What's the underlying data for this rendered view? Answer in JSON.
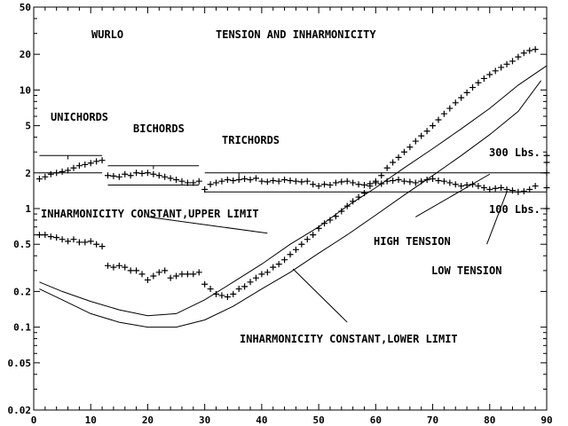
{
  "chart_data": {
    "type": "scatter",
    "y_scale": "log",
    "xlim": [
      0,
      90
    ],
    "ylim": [
      0.02,
      50
    ],
    "x_ticks": [
      0,
      10,
      20,
      30,
      40,
      50,
      60,
      70,
      80,
      90
    ],
    "x_tick_labels": [
      "0",
      "10",
      "20",
      "30",
      "40",
      "50",
      "60",
      "70",
      "80",
      "90"
    ],
    "y_ticks": [
      0.02,
      0.05,
      0.1,
      0.2,
      0.5,
      1,
      2,
      5,
      10,
      20,
      50
    ],
    "y_tick_labels": [
      "0.02",
      "0.05",
      "0.1",
      "0.2",
      "0.5",
      "1",
      "2",
      "5",
      "10",
      "20",
      "50"
    ],
    "annotations": {
      "wurlo": "WURLO",
      "title": "TENSION AND INHARMONICITY",
      "unichords": "UNICHORDS",
      "bichords": "BICHORDS",
      "trichords": "TRICHORDS",
      "lbs300": "300 Lbs.",
      "lbs100": "100 Lbs.",
      "inh_upper": "INHARMONICITY CONSTANT,UPPER LIMIT",
      "inh_lower": "INHARMONICITY CONSTANT,LOWER LIMIT",
      "high_tension": "HIGH TENSION",
      "low_tension": "LOW TENSION"
    },
    "series": [
      {
        "marker": "+",
        "x": [
          1,
          2,
          3,
          4,
          5,
          6,
          7,
          8,
          9,
          10,
          11,
          12,
          13,
          14,
          15,
          16,
          17,
          18,
          19,
          20,
          21,
          22,
          23,
          24,
          25,
          26,
          27,
          28,
          29,
          30,
          31,
          32,
          33,
          34,
          35,
          36,
          37,
          38,
          39,
          40,
          41,
          42,
          43,
          44,
          45,
          46,
          47,
          48,
          49,
          50,
          51,
          52,
          53,
          54,
          55,
          56,
          57,
          58,
          59,
          60,
          61,
          62,
          63,
          64,
          65,
          66,
          67,
          68,
          69,
          70,
          71,
          72,
          73,
          74,
          75,
          76,
          77,
          78,
          79,
          80,
          81,
          82,
          83,
          84,
          85,
          86,
          87,
          88
        ],
        "y": [
          1.78,
          1.85,
          1.95,
          2.0,
          2.05,
          2.1,
          2.2,
          2.3,
          2.35,
          2.42,
          2.5,
          2.55,
          1.9,
          1.88,
          1.85,
          1.95,
          1.9,
          2.0,
          1.98,
          2.0,
          1.95,
          1.9,
          1.85,
          1.8,
          1.75,
          1.7,
          1.65,
          1.65,
          1.7,
          1.45,
          1.6,
          1.65,
          1.7,
          1.75,
          1.72,
          1.75,
          1.78,
          1.75,
          1.8,
          1.7,
          1.68,
          1.72,
          1.7,
          1.75,
          1.72,
          1.7,
          1.68,
          1.7,
          1.6,
          1.55,
          1.6,
          1.58,
          1.65,
          1.68,
          1.7,
          1.65,
          1.6,
          1.58,
          1.62,
          1.65,
          1.62,
          1.7,
          1.72,
          1.75,
          1.7,
          1.68,
          1.65,
          1.7,
          1.75,
          1.78,
          1.72,
          1.7,
          1.65,
          1.6,
          1.55,
          1.58,
          1.6,
          1.55,
          1.5,
          1.45,
          1.48,
          1.5,
          1.45,
          1.42,
          1.38,
          1.4,
          1.45,
          1.55
        ]
      },
      {
        "marker": "+",
        "x": [
          1,
          2,
          3,
          4,
          5,
          6,
          7,
          8,
          9,
          10,
          11,
          12,
          13,
          14,
          15,
          16,
          17,
          18,
          19,
          20,
          21,
          22,
          23,
          24,
          25,
          26,
          27,
          28,
          29,
          30,
          31,
          32,
          33,
          34,
          35,
          36,
          37,
          38,
          39,
          40,
          41,
          42,
          43,
          44,
          45,
          46,
          47,
          48,
          49,
          50,
          51,
          52,
          53,
          54,
          55,
          56,
          57,
          58,
          59,
          60,
          61,
          62,
          63,
          64,
          65,
          66,
          67,
          68,
          69,
          70,
          71,
          72,
          73,
          74,
          75,
          76,
          77,
          78,
          79,
          80,
          81,
          82,
          83,
          84,
          85,
          86,
          87,
          88
        ],
        "y": [
          0.6,
          0.6,
          0.58,
          0.57,
          0.55,
          0.53,
          0.55,
          0.52,
          0.52,
          0.53,
          0.5,
          0.48,
          0.33,
          0.32,
          0.33,
          0.32,
          0.3,
          0.3,
          0.28,
          0.25,
          0.27,
          0.29,
          0.3,
          0.26,
          0.27,
          0.28,
          0.28,
          0.28,
          0.29,
          0.23,
          0.21,
          0.19,
          0.185,
          0.18,
          0.19,
          0.21,
          0.22,
          0.24,
          0.26,
          0.28,
          0.29,
          0.32,
          0.34,
          0.37,
          0.41,
          0.45,
          0.5,
          0.55,
          0.6,
          0.68,
          0.75,
          0.8,
          0.86,
          0.95,
          1.05,
          1.15,
          1.25,
          1.35,
          1.55,
          1.7,
          1.9,
          2.2,
          2.45,
          2.7,
          3.0,
          3.3,
          3.7,
          4.1,
          4.5,
          5.0,
          5.6,
          6.3,
          7.0,
          7.8,
          8.6,
          9.5,
          10.5,
          11.5,
          12.5,
          13.5,
          14.5,
          15.5,
          16.5,
          17.5,
          19.0,
          20.5,
          21.5,
          22.0
        ]
      },
      {
        "marker": "none",
        "x": [
          1,
          5,
          10,
          15,
          20,
          25,
          30,
          35,
          40,
          45,
          50,
          55,
          60,
          65,
          70,
          75,
          80,
          85,
          90
        ],
        "y": [
          0.24,
          0.2,
          0.165,
          0.14,
          0.125,
          0.13,
          0.17,
          0.24,
          0.34,
          0.5,
          0.7,
          1.05,
          1.5,
          2.2,
          3.2,
          4.7,
          7.0,
          11.0,
          16.0
        ]
      },
      {
        "marker": "none",
        "x": [
          1,
          5,
          10,
          15,
          20,
          25,
          30,
          35,
          40,
          45,
          50,
          55,
          60,
          65,
          70,
          75,
          80,
          85,
          89
        ],
        "y": [
          0.21,
          0.17,
          0.13,
          0.11,
          0.1,
          0.1,
          0.115,
          0.15,
          0.21,
          0.29,
          0.42,
          0.6,
          0.88,
          1.3,
          1.9,
          2.8,
          4.2,
          6.6,
          12.0
        ]
      },
      {
        "marker": "none",
        "x": [
          1,
          12
        ],
        "y": [
          2.8,
          2.8
        ]
      },
      {
        "marker": "none",
        "x": [
          1,
          12
        ],
        "y": [
          2.0,
          2.0
        ]
      },
      {
        "marker": "none",
        "x": [
          13,
          29
        ],
        "y": [
          2.3,
          2.3
        ]
      },
      {
        "marker": "none",
        "x": [
          13,
          29
        ],
        "y": [
          1.58,
          1.58
        ]
      },
      {
        "marker": "none",
        "x": [
          30,
          90
        ],
        "y": [
          2.0,
          2.0
        ]
      },
      {
        "marker": "none",
        "x": [
          30,
          90
        ],
        "y": [
          1.38,
          1.38
        ]
      }
    ]
  }
}
